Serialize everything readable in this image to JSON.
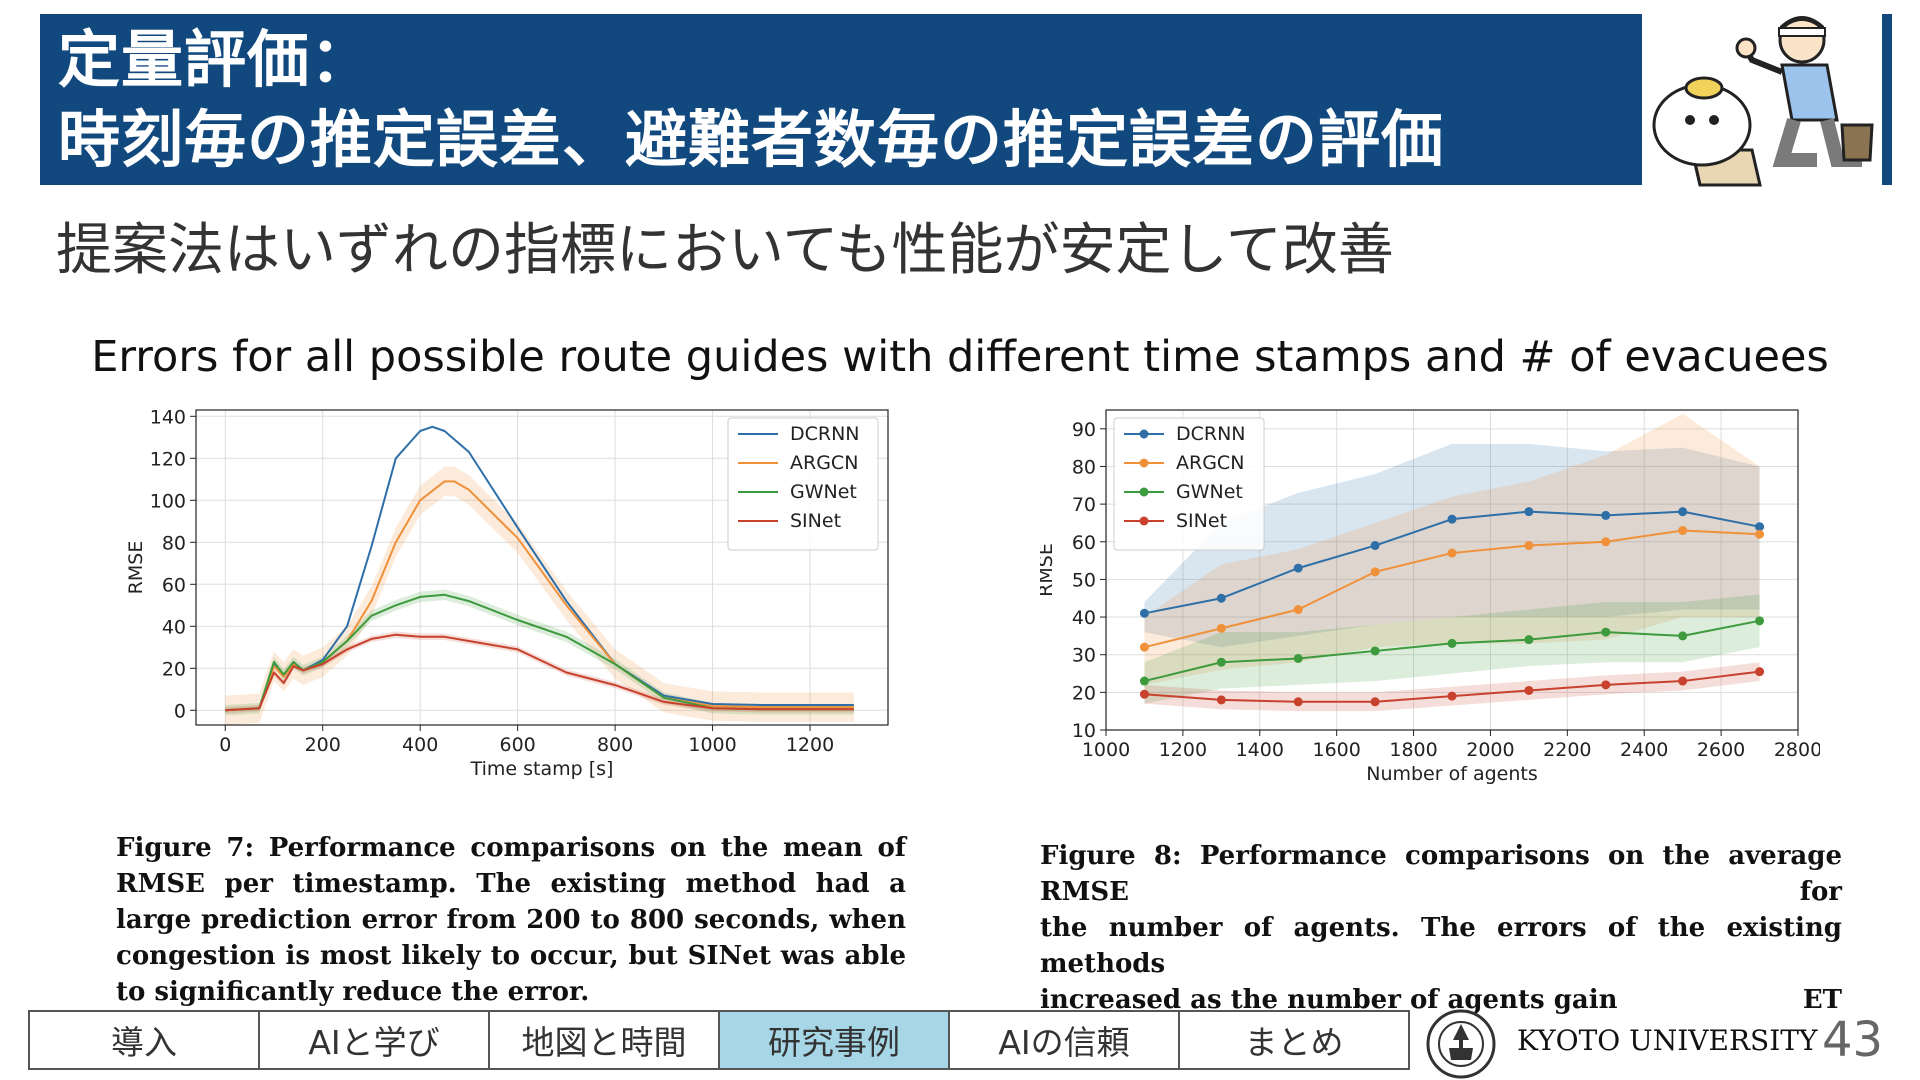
{
  "header": {
    "title_line1": "定量評価：",
    "title_line2": "時刻毎の推定誤差、避難者数毎の推定誤差の評価",
    "bg_color": "#11497f"
  },
  "subtitle": "提案法はいずれの指標においても性能が安定して改善",
  "caption_title": "Errors for all possible route guides with different time stamps and # of evacuees",
  "chart_data": [
    {
      "type": "line",
      "xlabel": "Time stamp [s]",
      "ylabel": "RMSE",
      "xlim": [
        -60,
        1360
      ],
      "ylim": [
        -7,
        143
      ],
      "xticks": [
        0,
        200,
        400,
        600,
        800,
        1000,
        1200
      ],
      "yticks": [
        0,
        20,
        40,
        60,
        80,
        100,
        120,
        140
      ],
      "grid": true,
      "legend": "top-right",
      "series": [
        {
          "name": "DCRNN",
          "color": "#2e6fa8",
          "x": [
            0,
            70,
            100,
            120,
            140,
            160,
            200,
            250,
            300,
            350,
            400,
            425,
            450,
            500,
            600,
            700,
            800,
            900,
            1000,
            1100,
            1200,
            1290
          ],
          "y": [
            0,
            1,
            22,
            16,
            23,
            19,
            24,
            40,
            78,
            120,
            133,
            135,
            133,
            123,
            87,
            52,
            22,
            7,
            3,
            2.5,
            2.5,
            2.5
          ],
          "band": 0
        },
        {
          "name": "ARGCN",
          "color": "#f0913a",
          "x": [
            0,
            70,
            100,
            120,
            140,
            160,
            200,
            250,
            300,
            350,
            400,
            450,
            470,
            500,
            600,
            700,
            800,
            900,
            1000,
            1100,
            1200,
            1290
          ],
          "y": [
            0,
            1,
            21,
            16,
            22,
            19,
            23,
            33,
            52,
            80,
            100,
            109,
            109,
            105,
            82,
            50,
            22,
            6,
            2,
            1.5,
            1.5,
            1.5
          ],
          "band": 7
        },
        {
          "name": "GWNet",
          "color": "#3d9a3d",
          "x": [
            0,
            70,
            100,
            120,
            140,
            160,
            200,
            250,
            300,
            350,
            400,
            450,
            500,
            600,
            700,
            800,
            900,
            1000,
            1100,
            1200,
            1290
          ],
          "y": [
            0,
            1,
            23,
            17,
            23,
            19,
            23,
            33,
            45,
            50,
            54,
            55,
            52,
            43,
            35,
            22,
            6,
            1,
            0.5,
            0.5,
            0.5
          ],
          "band": 2.5
        },
        {
          "name": "SINet",
          "color": "#c8412c",
          "x": [
            0,
            70,
            100,
            120,
            140,
            160,
            200,
            250,
            300,
            350,
            400,
            450,
            500,
            600,
            700,
            800,
            900,
            1000,
            1100,
            1200,
            1290
          ],
          "y": [
            0,
            1,
            18,
            13,
            21,
            19,
            22,
            29,
            34,
            36,
            35,
            35,
            33,
            29,
            18,
            12,
            4,
            1,
            0.5,
            0.5,
            0.5
          ],
          "band": 1.5
        }
      ]
    },
    {
      "type": "line",
      "xlabel": "Number of agents",
      "ylabel": "RMSE",
      "xlim": [
        1000,
        2800
      ],
      "ylim": [
        10,
        95
      ],
      "xticks": [
        1000,
        1200,
        1400,
        1600,
        1800,
        2000,
        2200,
        2400,
        2600,
        2800
      ],
      "yticks": [
        10,
        20,
        30,
        40,
        50,
        60,
        70,
        80,
        90
      ],
      "grid": true,
      "legend": "top-left",
      "categories": [
        1100,
        1300,
        1500,
        1700,
        1900,
        2100,
        2300,
        2500,
        2700
      ],
      "series": [
        {
          "name": "DCRNN",
          "color": "#2e6fa8",
          "values": [
            41,
            45,
            53,
            59,
            66,
            68,
            67,
            68,
            64
          ],
          "lower": [
            36,
            32,
            35,
            38,
            40,
            40,
            40,
            42,
            42
          ],
          "upper": [
            44,
            65,
            73,
            78,
            86,
            86,
            84,
            85,
            80
          ]
        },
        {
          "name": "ARGCN",
          "color": "#f0913a",
          "values": [
            32,
            37,
            42,
            52,
            57,
            59,
            60,
            63,
            62
          ],
          "lower": [
            22,
            26,
            28,
            32,
            33,
            33,
            34,
            40,
            40
          ],
          "upper": [
            40,
            54,
            58,
            65,
            72,
            76,
            83,
            94,
            80
          ]
        },
        {
          "name": "GWNet",
          "color": "#3d9a3d",
          "values": [
            23,
            28,
            29,
            31,
            33,
            34,
            36,
            35,
            39
          ],
          "lower": [
            17,
            21,
            22,
            23,
            25,
            27,
            28,
            28,
            32
          ],
          "upper": [
            28,
            36,
            36,
            38,
            40,
            42,
            44,
            44,
            46
          ]
        },
        {
          "name": "SINet",
          "color": "#c8412c",
          "values": [
            19.5,
            18,
            17.5,
            17.5,
            19,
            20.5,
            22,
            23,
            25.5
          ],
          "lower": [
            17,
            15.5,
            15,
            15,
            16.5,
            18,
            19.5,
            20.5,
            23
          ],
          "upper": [
            22,
            20.5,
            20,
            20,
            21.5,
            23,
            24.5,
            25.5,
            28
          ]
        }
      ]
    }
  ],
  "figure7_caption": "Figure 7: Performance comparisons on the mean of RMSE per timestamp. The existing method had a large prediction error from 200 to 800 seconds, when congestion is most likely to occur, but SINet was able to significantly reduce the error.",
  "figure8_caption_line1": "Figure 8: Performance comparisons on the average RMSE for",
  "figure8_caption_line2": "the number of agents. The errors of the existing methods",
  "figure8_caption_line3a": "increased as the number of agents gain",
  "figure8_caption_line3b": "ET",
  "nav": {
    "items": [
      {
        "label": "導入"
      },
      {
        "label": "AIと学び"
      },
      {
        "label": "地図と時間"
      },
      {
        "label": "研究事例"
      },
      {
        "label": "AIの信頼"
      },
      {
        "label": "まとめ"
      }
    ],
    "active_index": 3,
    "active_color": "#a7d6e6"
  },
  "footer": {
    "university": "KYOTO UNIVERSITY",
    "page_number": "43"
  }
}
